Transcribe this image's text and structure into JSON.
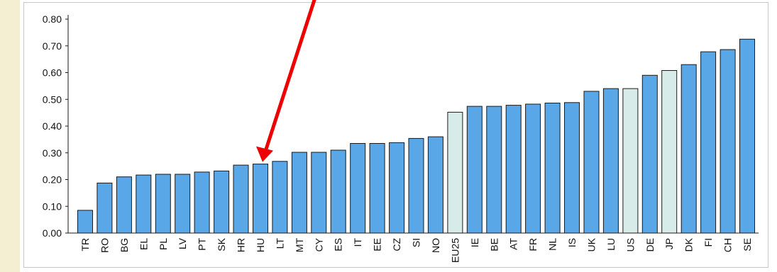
{
  "chart_data": {
    "type": "bar",
    "title": "",
    "xlabel": "",
    "ylabel": "",
    "ylim": [
      0,
      0.8
    ],
    "yticks": [
      "0.00",
      "0.10",
      "0.20",
      "0.30",
      "0.40",
      "0.50",
      "0.60",
      "0.70",
      "0.80"
    ],
    "grid": false,
    "categories": [
      "TR",
      "RO",
      "BG",
      "EL",
      "PL",
      "LV",
      "PT",
      "SK",
      "HR",
      "HU",
      "LT",
      "MT",
      "CY",
      "ES",
      "IT",
      "EE",
      "CZ",
      "SI",
      "NO",
      "EU25",
      "IE",
      "BE",
      "AT",
      "FR",
      "NL",
      "IS",
      "UK",
      "LU",
      "US",
      "DE",
      "JP",
      "DK",
      "FI",
      "CH",
      "SE"
    ],
    "values": [
      0.085,
      0.187,
      0.21,
      0.217,
      0.22,
      0.22,
      0.228,
      0.232,
      0.254,
      0.258,
      0.268,
      0.302,
      0.302,
      0.31,
      0.335,
      0.335,
      0.338,
      0.354,
      0.36,
      0.452,
      0.474,
      0.474,
      0.478,
      0.482,
      0.486,
      0.488,
      0.53,
      0.54,
      0.54,
      0.59,
      0.608,
      0.63,
      0.678,
      0.686,
      0.725
    ],
    "highlighted_categories": [
      "EU25",
      "US",
      "JP"
    ],
    "colors": {
      "bar": "#5aa7e8",
      "bar_highlight": "#d7ece8",
      "bar_outline": "#1a1a1a",
      "arrow": "#ee0000",
      "axis": "#1a1a1a"
    },
    "annotations": [
      {
        "type": "arrow",
        "target_category": "HU"
      }
    ]
  }
}
